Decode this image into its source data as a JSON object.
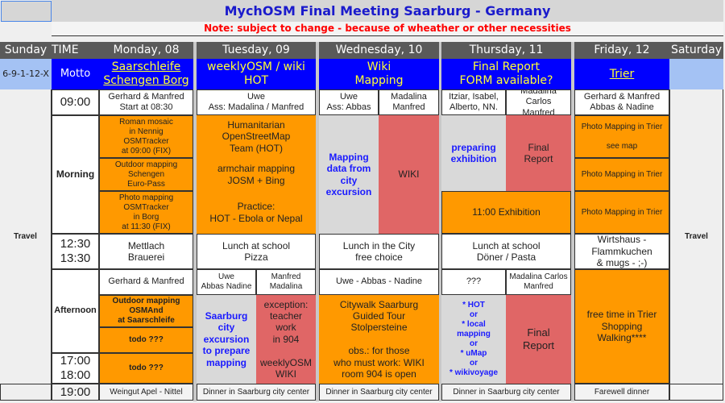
{
  "title": "MychOSM Final Meeting Saarburg - Germany",
  "note": "Note: subject to change - because of wheather or other necessities",
  "header": {
    "sunday": "Sunday",
    "time": "TIME",
    "monday": "Monday, 08",
    "tuesday": "Tuesday, 09",
    "wednesday": "Wednesday, 10",
    "thursday": "Thursday, 11",
    "friday": "Friday, 12",
    "saturday": "Saturday"
  },
  "motto": {
    "code": "6-9-1-12-X",
    "label": "Motto",
    "monday": "Saarschleife\nSchengen Borg",
    "tuesday": "weeklyOSM / wiki\nHOT",
    "wednesday": "Wiki\nMapping",
    "thursday": "Final Report\nFORM available?",
    "friday": "Trier"
  },
  "travel": "Travel",
  "row0900": {
    "time": "09:00",
    "monday": "Gerhard & Manfred\nStart at 08:30",
    "tuesday": "Uwe\nAss: Madalina / Manfred",
    "wednesday_a": "Uwe\nAss: Abbas",
    "wednesday_b": "Madalina\nManfred",
    "thursday_a": "Itziar, Isabel,\nAlberto, NN.",
    "thursday_b": "Madalina Carlos\nManfred",
    "friday": "Gerhard & Manfred\nAbbas & Nadine"
  },
  "morning": {
    "label": "Morning",
    "monday": [
      "Roman mosaic\nin Nennig\nOSMTracker\nat 09:00 (FIX)",
      "Outdoor mapping\nSchengen\nEuro-Pass",
      "Photo mapping\nOSMTracker\nin Borg\nat 11:30 (FIX)"
    ],
    "tuesday": [
      "Humanitarian\nOpenStreetMap\nTeam (HOT)",
      "armchair mapping\nJOSM + Bing",
      "Practice:\nHOT - Ebola or Nepal"
    ],
    "wednesday_a": "Mapping\ndata from\ncity\nexcursion",
    "wednesday_b": "WIKI",
    "thursday_a": "preparing\nexhibition",
    "thursday_b": "Final\nReport",
    "thursday_c": "11:00 Exhibition",
    "friday": [
      "Photo Mapping in Trier\n\nsee map",
      "Photo Mapping in Trier",
      "Photo Mapping in Trier"
    ]
  },
  "lunch": {
    "time": "12:30\n13:30",
    "monday": "Mettlach\nBrauerei",
    "tuesday": "Lunch at school\nPizza",
    "wednesday": "Lunch in the City\nfree choice",
    "thursday": "Lunch at school\nDöner / Pasta",
    "friday": "Wirtshaus -\nFlammkuchen\n& mugs - ;-)"
  },
  "afternoon": {
    "label": "Afternoon",
    "time": "17:00\n18:00",
    "monday_names": "Gerhard & Manfred",
    "monday": [
      "Outdoor mapping\nOSMAnd\nat Saarschleife",
      "todo ???",
      "todo ???"
    ],
    "tuesday_names_a": "Uwe\nAbbas Nadine",
    "tuesday_names_b": "Manfred\nMadalina",
    "tuesday_a": "Saarburg\ncity\nexcursion\nto prepare\nmapping",
    "tuesday_b": "exception:\nteacher\nwork\nin 904\n\nweeklyOSM\nWIKI",
    "wednesday_names": "Uwe - Abbas - Nadine",
    "wednesday": "Citywalk Saarburg\nGuided Tour\nStolpersteine\n\nobs.: for those\nwho must work: WIKI\nroom 904 is open",
    "thursday_names_a": "???",
    "thursday_names_b": "Madalina Carlos\nManfred",
    "thursday_a": "* HOT\nor\n* local\nmapping\nor\n* uMap\nor\n* wikivoyage",
    "thursday_b": "Final\nReport",
    "friday": "free time in Trier\nShopping\nWalking****"
  },
  "evening": {
    "time": "19:00",
    "monday": "Weingut Apel - Nittel",
    "tuesday": "Dinner in Saarburg city center",
    "wednesday": "Dinner in Saarburg city center",
    "thursday": "Dinner in Saarburg city center",
    "friday": "Farewell dinner"
  },
  "colors": {
    "activity": "#ff9900",
    "report": "#e06666",
    "motto_bg": "#0000ff",
    "motto_text": "#ffff33",
    "title": "#1a1acc",
    "note": "#ff0000"
  }
}
